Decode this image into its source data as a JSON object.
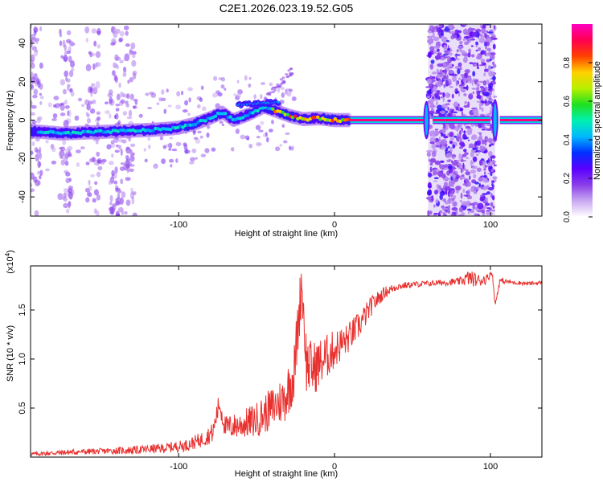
{
  "figure_title": "C2E1.2026.023.19.52.G05",
  "chart_data": [
    {
      "type": "heatmap",
      "title": "C2E1.2026.023.19.52.G05",
      "xlabel": "Height of straight line (km)",
      "ylabel": "Frequency (Hz)",
      "xlim": [
        -195,
        133
      ],
      "ylim": [
        -50,
        50
      ],
      "x_ticks": [
        -100,
        0,
        100
      ],
      "x_tick_labels": [
        "-100",
        "0",
        "100"
      ],
      "y_ticks": [
        -40,
        -20,
        0,
        20,
        40
      ],
      "y_tick_labels": [
        "-40",
        "-20",
        "0",
        "20",
        "40"
      ],
      "ridge_points": [
        {
          "x": -190,
          "y": -6
        },
        {
          "x": -175,
          "y": -7
        },
        {
          "x": -160,
          "y": -6.5
        },
        {
          "x": -145,
          "y": -6
        },
        {
          "x": -130,
          "y": -5.5
        },
        {
          "x": -115,
          "y": -5
        },
        {
          "x": -100,
          "y": -4
        },
        {
          "x": -90,
          "y": -2
        },
        {
          "x": -80,
          "y": 1
        },
        {
          "x": -72,
          "y": 4
        },
        {
          "x": -65,
          "y": 0
        },
        {
          "x": -55,
          "y": 3
        },
        {
          "x": -45,
          "y": 7
        },
        {
          "x": -35,
          "y": 4
        },
        {
          "x": -28,
          "y": 2
        },
        {
          "x": -20,
          "y": 0.5
        },
        {
          "x": -10,
          "y": 1
        },
        {
          "x": 0,
          "y": 0
        },
        {
          "x": 10,
          "y": 0
        },
        {
          "x": 55,
          "y": 0
        },
        {
          "x": 60,
          "y": 0
        },
        {
          "x": 100,
          "y": 0
        },
        {
          "x": 104,
          "y": 0
        },
        {
          "x": 133,
          "y": 0
        }
      ],
      "noise_band_x": [
        60,
        103
      ],
      "colorbar": {
        "label": "Normalized spectral amplitude",
        "range": [
          0,
          1
        ],
        "ticks": [
          0.0,
          0.2,
          0.4,
          0.6,
          0.8
        ],
        "tick_labels": [
          "0.0",
          "0.2",
          "0.4",
          "0.6",
          "0.8"
        ],
        "colors": [
          "#ffffff",
          "#c9a8f2",
          "#8a3ee8",
          "#5a00ff",
          "#0030ff",
          "#00b8ff",
          "#00f0b0",
          "#20e020",
          "#b8f000",
          "#ffd000",
          "#ff4000",
          "#ff0050",
          "#ff00c0"
        ]
      }
    },
    {
      "type": "line",
      "xlabel": "Height of straight line (km)",
      "ylabel": "SNR (10 * v/v)",
      "y_scale_note": "(x10",
      "y_scale_exp": "4",
      "y_scale_close": ")",
      "xlim": [
        -195,
        133
      ],
      "ylim": [
        0,
        1.95
      ],
      "x_ticks": [
        -100,
        0,
        100
      ],
      "x_tick_labels": [
        "-100",
        "0",
        "100"
      ],
      "y_ticks": [
        0.5,
        1.0,
        1.5
      ],
      "y_tick_labels": [
        "0.5",
        "1.0",
        "1.5"
      ],
      "line_color": "#e8302e",
      "series": [
        {
          "name": "SNR",
          "x": [
            -195,
            -170,
            -150,
            -130,
            -110,
            -95,
            -85,
            -78,
            -74,
            -70,
            -60,
            -50,
            -40,
            -32,
            -26,
            -21,
            -18,
            -14,
            -8,
            0,
            8,
            16,
            24,
            32,
            40,
            50,
            60,
            70,
            80,
            86,
            92,
            98,
            101,
            103,
            106,
            115,
            125,
            133
          ],
          "y": [
            0.03,
            0.05,
            0.06,
            0.07,
            0.09,
            0.12,
            0.18,
            0.25,
            0.55,
            0.3,
            0.33,
            0.38,
            0.5,
            0.6,
            0.85,
            1.8,
            0.95,
            0.9,
            0.98,
            1.1,
            1.2,
            1.35,
            1.55,
            1.68,
            1.74,
            1.76,
            1.77,
            1.78,
            1.79,
            1.83,
            1.8,
            1.82,
            1.9,
            1.55,
            1.8,
            1.78,
            1.77,
            1.78
          ],
          "amp": [
            0.02,
            0.03,
            0.03,
            0.04,
            0.05,
            0.06,
            0.08,
            0.1,
            0.12,
            0.12,
            0.14,
            0.18,
            0.22,
            0.25,
            0.3,
            0.3,
            0.3,
            0.28,
            0.25,
            0.2,
            0.16,
            0.14,
            0.1,
            0.06,
            0.04,
            0.03,
            0.03,
            0.03,
            0.04,
            0.08,
            0.07,
            0.05,
            0.03,
            0.03,
            0.03,
            0.02,
            0.02,
            0.02
          ]
        }
      ]
    }
  ]
}
